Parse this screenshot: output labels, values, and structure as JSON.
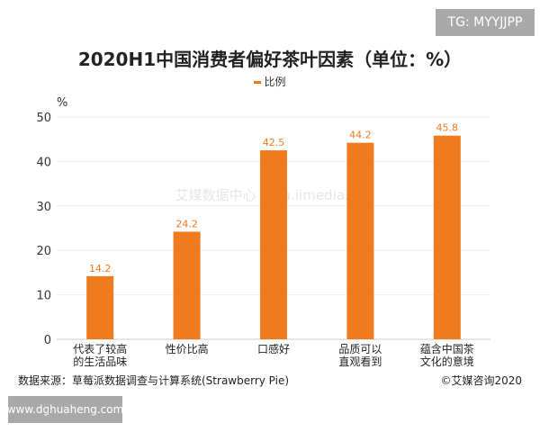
{
  "watermarks": {
    "tg": "TG: MYYJJPP",
    "site": "www.dghuaheng.com",
    "center": "艾媒数据中心 data.iimedia.cn"
  },
  "footer": {
    "source": "数据来源：草莓派数据调查与计算系统(Strawberry Pie)",
    "copyright": "©艾媒咨询2020"
  },
  "chart_data": {
    "type": "bar",
    "title": "2020H1中国消费者偏好茶叶因素（单位：%）",
    "ylabel": "%",
    "ylim": [
      0,
      50
    ],
    "yticks": [
      0,
      10,
      20,
      30,
      40,
      50
    ],
    "grid": true,
    "legend_position": "top",
    "bar_color": "#f07a1e",
    "categories": [
      "代表了较高的生活品味",
      "性价比高",
      "口感好",
      "品质可以直观看到",
      "蕴含中国茶文化的意境"
    ],
    "series": [
      {
        "name": "比例",
        "values": [
          14.2,
          24.2,
          42.5,
          44.2,
          45.8
        ]
      }
    ]
  }
}
